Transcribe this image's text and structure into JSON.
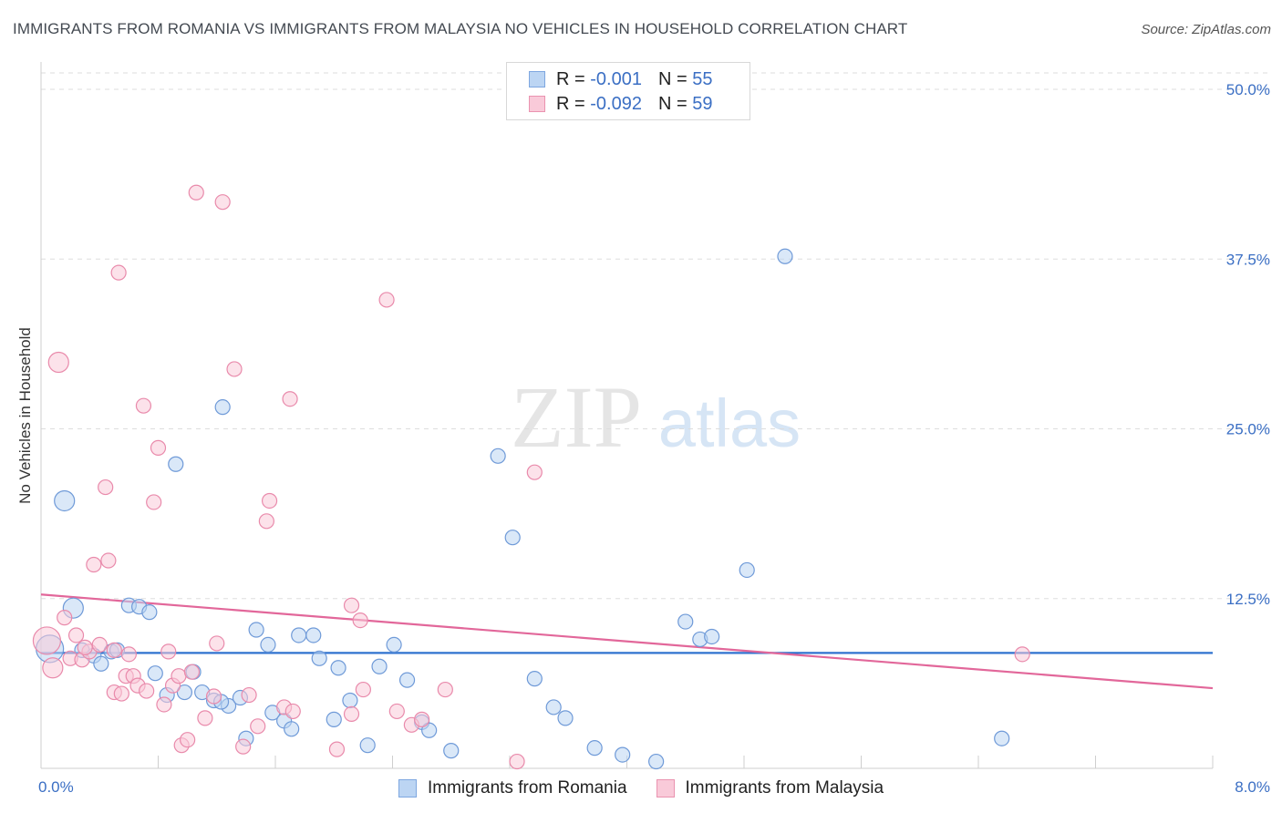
{
  "title": "IMMIGRANTS FROM ROMANIA VS IMMIGRANTS FROM MALAYSIA NO VEHICLES IN HOUSEHOLD CORRELATION CHART",
  "source": "Source: ZipAtlas.com",
  "watermark": {
    "zip": "ZIP",
    "atlas": "atlas"
  },
  "legend": {
    "romania": {
      "r_label": "R =",
      "r_value": "-0.001",
      "n_label": "N =",
      "n_value": "55"
    },
    "malaysia": {
      "r_label": "R =",
      "r_value": "-0.092",
      "n_label": "N =",
      "n_value": "59"
    }
  },
  "bottom_legend": {
    "romania": "Immigrants from Romania",
    "malaysia": "Immigrants from Malaysia"
  },
  "colors": {
    "blue_fill": "#bcd5f3",
    "blue_stroke": "#6f9ad8",
    "blue_line": "#2f72cf",
    "pink_fill": "#f9cad9",
    "pink_stroke": "#e98aab",
    "pink_line": "#e2679a",
    "tick_label": "#3b6fc4",
    "grid": "#dddddd"
  },
  "chart_data": {
    "type": "scatter",
    "title": "IMMIGRANTS FROM ROMANIA VS IMMIGRANTS FROM MALAYSIA NO VEHICLES IN HOUSEHOLD CORRELATION CHART",
    "xlabel": "",
    "ylabel": "No Vehicles in Household",
    "xlim": [
      0,
      8
    ],
    "ylim": [
      0,
      50
    ],
    "x_tick_labels": [
      "0.0%",
      "8.0%"
    ],
    "y_ticks": [
      12.5,
      25.0,
      37.5,
      50.0
    ],
    "y_tick_labels": [
      "12.5%",
      "25.0%",
      "37.5%",
      "50.0%"
    ],
    "series": [
      {
        "name": "Immigrants from Romania",
        "color": "blue",
        "trend": {
          "x": [
            0,
            8
          ],
          "y": [
            8.5,
            8.5
          ]
        },
        "points": [
          {
            "x": 0.06,
            "y": 8.8,
            "s": "lg"
          },
          {
            "x": 0.16,
            "y": 19.7,
            "s": "md"
          },
          {
            "x": 0.22,
            "y": 11.8,
            "s": "md"
          },
          {
            "x": 0.28,
            "y": 8.7
          },
          {
            "x": 0.36,
            "y": 8.3
          },
          {
            "x": 0.41,
            "y": 7.7
          },
          {
            "x": 0.48,
            "y": 8.6
          },
          {
            "x": 0.6,
            "y": 12.0
          },
          {
            "x": 0.67,
            "y": 11.9
          },
          {
            "x": 0.74,
            "y": 11.5
          },
          {
            "x": 0.78,
            "y": 7.0
          },
          {
            "x": 0.86,
            "y": 5.4
          },
          {
            "x": 0.92,
            "y": 22.4
          },
          {
            "x": 0.98,
            "y": 5.6
          },
          {
            "x": 1.04,
            "y": 7.1
          },
          {
            "x": 1.1,
            "y": 5.6
          },
          {
            "x": 1.18,
            "y": 5.0
          },
          {
            "x": 1.24,
            "y": 26.6
          },
          {
            "x": 1.28,
            "y": 4.6
          },
          {
            "x": 1.36,
            "y": 5.2
          },
          {
            "x": 1.4,
            "y": 2.2
          },
          {
            "x": 1.47,
            "y": 10.2
          },
          {
            "x": 1.55,
            "y": 9.1
          },
          {
            "x": 1.58,
            "y": 4.1
          },
          {
            "x": 1.66,
            "y": 3.5
          },
          {
            "x": 1.71,
            "y": 2.9
          },
          {
            "x": 1.76,
            "y": 9.8
          },
          {
            "x": 1.86,
            "y": 9.8
          },
          {
            "x": 1.9,
            "y": 8.1
          },
          {
            "x": 2.0,
            "y": 3.6
          },
          {
            "x": 2.03,
            "y": 7.4
          },
          {
            "x": 2.11,
            "y": 5.0
          },
          {
            "x": 2.23,
            "y": 1.7
          },
          {
            "x": 2.31,
            "y": 7.5
          },
          {
            "x": 2.41,
            "y": 9.1
          },
          {
            "x": 2.5,
            "y": 6.5
          },
          {
            "x": 2.6,
            "y": 3.4
          },
          {
            "x": 2.65,
            "y": 2.8
          },
          {
            "x": 2.8,
            "y": 1.3
          },
          {
            "x": 3.12,
            "y": 23.0
          },
          {
            "x": 3.22,
            "y": 17.0
          },
          {
            "x": 3.37,
            "y": 6.6
          },
          {
            "x": 3.5,
            "y": 4.5
          },
          {
            "x": 3.58,
            "y": 3.7
          },
          {
            "x": 3.78,
            "y": 1.5
          },
          {
            "x": 3.97,
            "y": 1.0
          },
          {
            "x": 4.2,
            "y": 0.5
          },
          {
            "x": 4.4,
            "y": 10.8
          },
          {
            "x": 4.5,
            "y": 9.5
          },
          {
            "x": 4.58,
            "y": 9.7
          },
          {
            "x": 4.82,
            "y": 14.6
          },
          {
            "x": 5.08,
            "y": 37.7
          },
          {
            "x": 6.56,
            "y": 2.2
          },
          {
            "x": 0.52,
            "y": 8.7
          },
          {
            "x": 1.23,
            "y": 4.9
          }
        ]
      },
      {
        "name": "Immigrants from Malaysia",
        "color": "pink",
        "trend": {
          "x": [
            0,
            8
          ],
          "y": [
            12.8,
            5.9
          ]
        },
        "points": [
          {
            "x": 0.04,
            "y": 9.4,
            "s": "lg"
          },
          {
            "x": 0.08,
            "y": 7.4,
            "s": "md"
          },
          {
            "x": 0.12,
            "y": 29.9,
            "s": "md"
          },
          {
            "x": 0.16,
            "y": 11.1
          },
          {
            "x": 0.2,
            "y": 8.1
          },
          {
            "x": 0.24,
            "y": 9.8
          },
          {
            "x": 0.28,
            "y": 8.0
          },
          {
            "x": 0.33,
            "y": 8.6
          },
          {
            "x": 0.36,
            "y": 15.0
          },
          {
            "x": 0.4,
            "y": 9.1
          },
          {
            "x": 0.44,
            "y": 20.7
          },
          {
            "x": 0.46,
            "y": 15.3
          },
          {
            "x": 0.5,
            "y": 5.6
          },
          {
            "x": 0.5,
            "y": 8.7
          },
          {
            "x": 0.53,
            "y": 36.5
          },
          {
            "x": 0.55,
            "y": 5.5
          },
          {
            "x": 0.58,
            "y": 6.8
          },
          {
            "x": 0.6,
            "y": 8.4
          },
          {
            "x": 0.63,
            "y": 6.8
          },
          {
            "x": 0.66,
            "y": 6.1
          },
          {
            "x": 0.7,
            "y": 26.7
          },
          {
            "x": 0.72,
            "y": 5.7
          },
          {
            "x": 0.77,
            "y": 19.6
          },
          {
            "x": 0.8,
            "y": 23.6
          },
          {
            "x": 0.84,
            "y": 4.7
          },
          {
            "x": 0.87,
            "y": 8.6
          },
          {
            "x": 0.9,
            "y": 6.1
          },
          {
            "x": 0.94,
            "y": 6.8
          },
          {
            "x": 0.96,
            "y": 1.7
          },
          {
            "x": 1.0,
            "y": 2.1
          },
          {
            "x": 1.03,
            "y": 7.1
          },
          {
            "x": 1.06,
            "y": 42.4
          },
          {
            "x": 1.12,
            "y": 3.7
          },
          {
            "x": 1.18,
            "y": 5.3
          },
          {
            "x": 1.2,
            "y": 9.2
          },
          {
            "x": 1.24,
            "y": 41.7
          },
          {
            "x": 1.32,
            "y": 29.4
          },
          {
            "x": 1.38,
            "y": 1.6
          },
          {
            "x": 1.42,
            "y": 5.4
          },
          {
            "x": 1.48,
            "y": 3.1
          },
          {
            "x": 1.54,
            "y": 18.2
          },
          {
            "x": 1.56,
            "y": 19.7
          },
          {
            "x": 1.66,
            "y": 4.5
          },
          {
            "x": 1.7,
            "y": 27.2
          },
          {
            "x": 1.72,
            "y": 4.2
          },
          {
            "x": 2.02,
            "y": 1.4
          },
          {
            "x": 2.12,
            "y": 12.0
          },
          {
            "x": 2.12,
            "y": 4.0
          },
          {
            "x": 2.18,
            "y": 10.9
          },
          {
            "x": 2.2,
            "y": 5.8
          },
          {
            "x": 2.36,
            "y": 34.5
          },
          {
            "x": 2.43,
            "y": 4.2
          },
          {
            "x": 2.53,
            "y": 3.2
          },
          {
            "x": 2.6,
            "y": 3.6
          },
          {
            "x": 2.76,
            "y": 5.8
          },
          {
            "x": 3.25,
            "y": 0.5
          },
          {
            "x": 3.37,
            "y": 21.8
          },
          {
            "x": 6.7,
            "y": 8.4
          },
          {
            "x": 0.3,
            "y": 8.9
          }
        ]
      }
    ]
  }
}
